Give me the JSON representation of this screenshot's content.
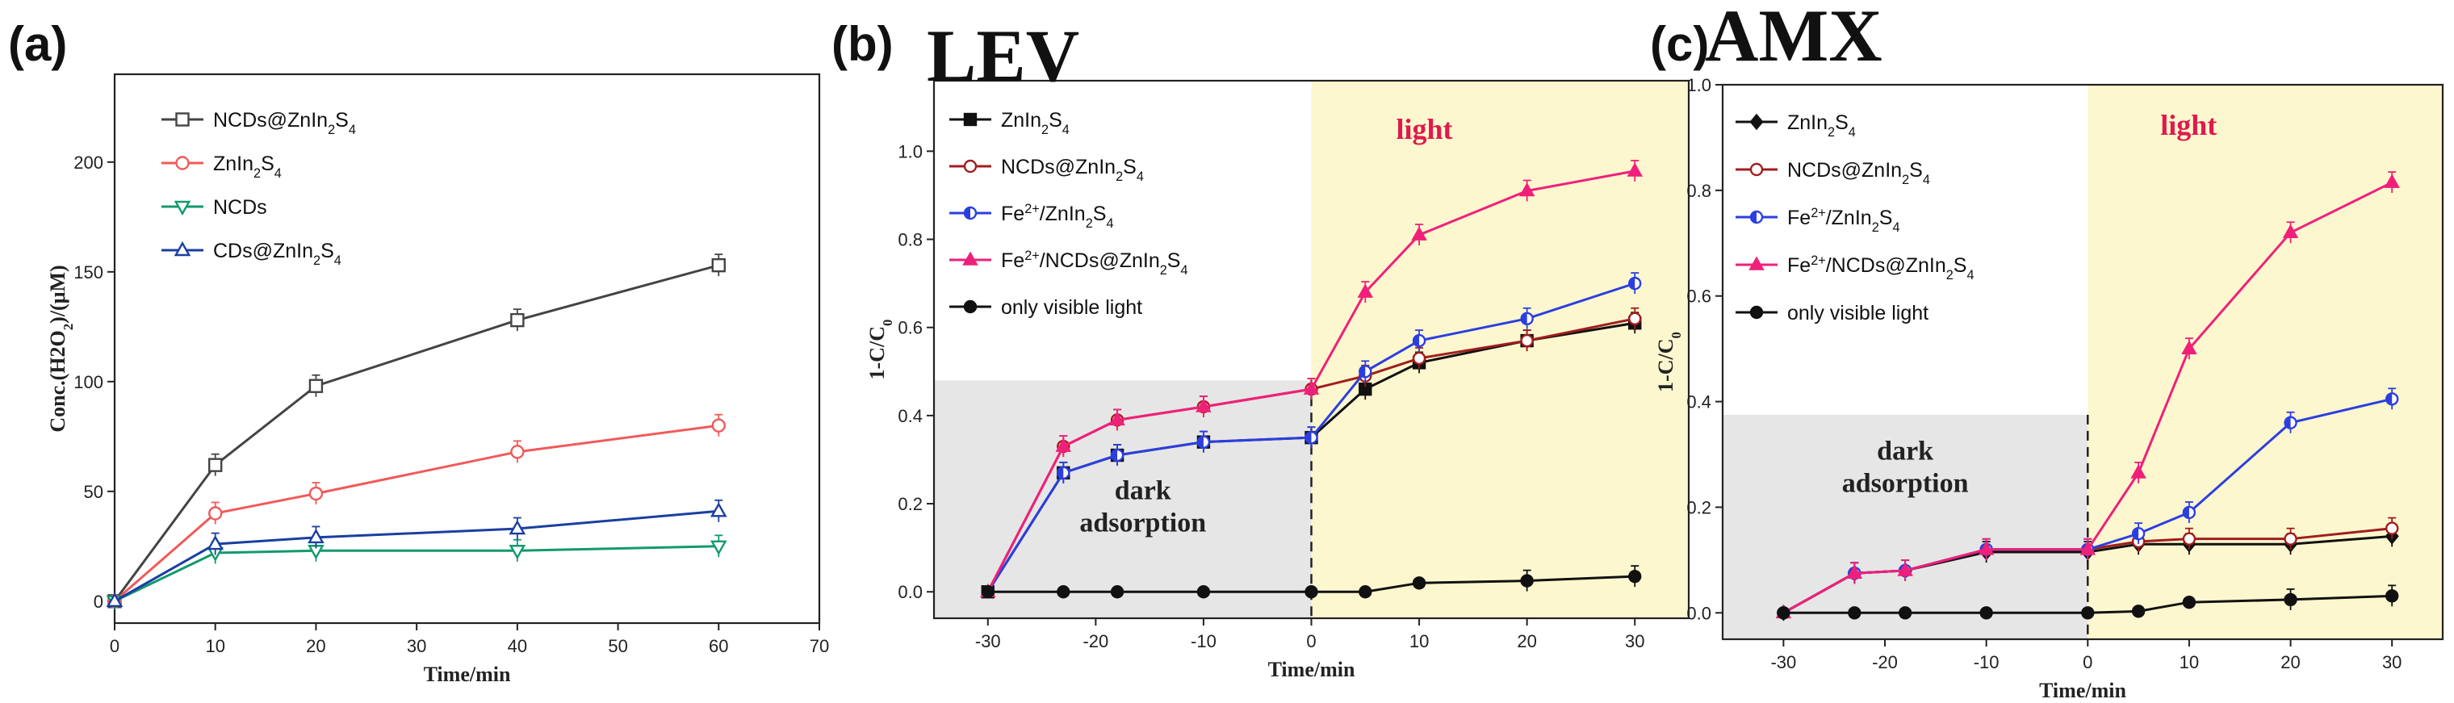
{
  "chart_data": [
    {
      "panel": "(a)",
      "title": "",
      "type": "line",
      "xlabel": "Time/min",
      "ylabel": "Conc.(H2O2)/(μM)",
      "xlim": [
        0,
        70
      ],
      "ylim": [
        -10,
        240
      ],
      "xticks": [
        0,
        10,
        20,
        30,
        40,
        50,
        60,
        70
      ],
      "yticks": [
        0,
        50,
        100,
        150,
        200
      ],
      "legend_position": "top-left",
      "series": [
        {
          "name": "NCDs@ZnIn2S4",
          "color": "#444444",
          "marker": "square-open",
          "x": [
            0,
            10,
            20,
            40,
            60
          ],
          "y": [
            0,
            62,
            98,
            128,
            153
          ]
        },
        {
          "name": "ZnIn2S4",
          "color": "#f15a5a",
          "marker": "circle-open",
          "x": [
            0,
            10,
            20,
            40,
            60
          ],
          "y": [
            0,
            40,
            49,
            68,
            80
          ]
        },
        {
          "name": "NCDs",
          "color": "#129a6a",
          "marker": "triangle-down-open",
          "x": [
            0,
            10,
            20,
            40,
            60
          ],
          "y": [
            0,
            22,
            23,
            23,
            25
          ]
        },
        {
          "name": "CDs@ZnIn2S4",
          "color": "#1a3fa0",
          "marker": "triangle-open",
          "x": [
            0,
            10,
            20,
            40,
            60
          ],
          "y": [
            0,
            26,
            29,
            33,
            41
          ]
        }
      ]
    },
    {
      "panel": "(b)",
      "title": "LEV",
      "type": "line",
      "xlabel": "Time/min",
      "ylabel": "1-C/C0",
      "xlim": [
        -35,
        35
      ],
      "ylim": [
        -0.06,
        1.16
      ],
      "xticks": [
        -30,
        -20,
        -10,
        0,
        10,
        20,
        30
      ],
      "yticks": [
        0.0,
        0.2,
        0.4,
        0.6,
        0.8,
        1.0
      ],
      "dark_region": {
        "x": [
          -35,
          0
        ],
        "y_top": 0.48,
        "label_line1": "dark",
        "label_line2": "adsorption"
      },
      "light_region": {
        "x": [
          0,
          35
        ],
        "label": "light"
      },
      "legend_position": "top-left",
      "series": [
        {
          "name": "ZnIn2S4",
          "color": "#111111",
          "marker": "square-filled",
          "x": [
            -30,
            -23,
            -18,
            -10,
            0,
            5,
            10,
            20,
            30
          ],
          "y": [
            0,
            0.27,
            0.31,
            0.34,
            0.35,
            0.46,
            0.52,
            0.57,
            0.61
          ]
        },
        {
          "name": "NCDs@ZnIn2S4",
          "color": "#a11d1d",
          "marker": "circle-open",
          "x": [
            -30,
            -23,
            -18,
            -10,
            0,
            5,
            10,
            20,
            30
          ],
          "y": [
            0,
            0.33,
            0.39,
            0.42,
            0.46,
            0.49,
            0.53,
            0.57,
            0.62
          ]
        },
        {
          "name": "Fe2+/ZnIn2S4",
          "color": "#2b3fe0",
          "marker": "circle-half",
          "x": [
            -30,
            -23,
            -18,
            -10,
            0,
            5,
            10,
            20,
            30
          ],
          "y": [
            0,
            0.27,
            0.31,
            0.34,
            0.35,
            0.5,
            0.57,
            0.62,
            0.7
          ]
        },
        {
          "name": "Fe2+/NCDs@ZnIn2S4",
          "color": "#f0207a",
          "marker": "triangle-filled",
          "x": [
            -30,
            -23,
            -18,
            -10,
            0,
            5,
            10,
            20,
            30
          ],
          "y": [
            0,
            0.33,
            0.39,
            0.42,
            0.46,
            0.68,
            0.81,
            0.91,
            0.955
          ]
        },
        {
          "name": "only visible light",
          "color": "#111111",
          "marker": "circle-filled",
          "x": [
            -30,
            -23,
            -18,
            -10,
            0,
            5,
            10,
            20,
            30
          ],
          "y": [
            0,
            0,
            0,
            0,
            0,
            0,
            0.02,
            0.025,
            0.035
          ]
        }
      ]
    },
    {
      "panel": "(c)",
      "title": "AMX",
      "type": "line",
      "xlabel": "Time/min",
      "ylabel": "1-C/C0",
      "xlim": [
        -36,
        35
      ],
      "ylim": [
        -0.05,
        1.0
      ],
      "xticks": [
        -30,
        -20,
        -10,
        0,
        10,
        20,
        30
      ],
      "yticks": [
        0.0,
        0.2,
        0.4,
        0.6,
        0.8,
        1.0
      ],
      "dark_region": {
        "x": [
          -36,
          0
        ],
        "y_top": 0.375,
        "label_line1": "dark",
        "label_line2": "adsorption"
      },
      "light_region": {
        "x": [
          0,
          35
        ],
        "label": "light"
      },
      "legend_position": "top-left",
      "series": [
        {
          "name": "ZnIn2S4",
          "color": "#111111",
          "marker": "diamond-filled",
          "x": [
            -30,
            -23,
            -18,
            -10,
            0,
            5,
            10,
            20,
            30
          ],
          "y": [
            0,
            0.075,
            0.08,
            0.115,
            0.115,
            0.13,
            0.13,
            0.13,
            0.145
          ]
        },
        {
          "name": "NCDs@ZnIn2S4",
          "color": "#a11d1d",
          "marker": "circle-open",
          "x": [
            -30,
            -23,
            -18,
            -10,
            0,
            5,
            10,
            20,
            30
          ],
          "y": [
            0,
            0.075,
            0.08,
            0.12,
            0.12,
            0.135,
            0.14,
            0.14,
            0.16
          ]
        },
        {
          "name": "Fe2+/ZnIn2S4",
          "color": "#2b3fe0",
          "marker": "circle-half",
          "x": [
            -30,
            -23,
            -18,
            -10,
            0,
            5,
            10,
            20,
            30
          ],
          "y": [
            0,
            0.075,
            0.08,
            0.12,
            0.12,
            0.15,
            0.19,
            0.36,
            0.405
          ]
        },
        {
          "name": "Fe2+/NCDs@ZnIn2S4",
          "color": "#f0207a",
          "marker": "triangle-filled",
          "x": [
            -30,
            -23,
            -18,
            -10,
            0,
            5,
            10,
            20,
            30
          ],
          "y": [
            0,
            0.075,
            0.08,
            0.12,
            0.12,
            0.265,
            0.5,
            0.72,
            0.815
          ]
        },
        {
          "name": "only visible light",
          "color": "#111111",
          "marker": "circle-filled",
          "x": [
            -30,
            -23,
            -18,
            -10,
            0,
            5,
            10,
            20,
            30
          ],
          "y": [
            0,
            0,
            0,
            0,
            0,
            0.003,
            0.02,
            0.025,
            0.032
          ]
        }
      ]
    }
  ]
}
